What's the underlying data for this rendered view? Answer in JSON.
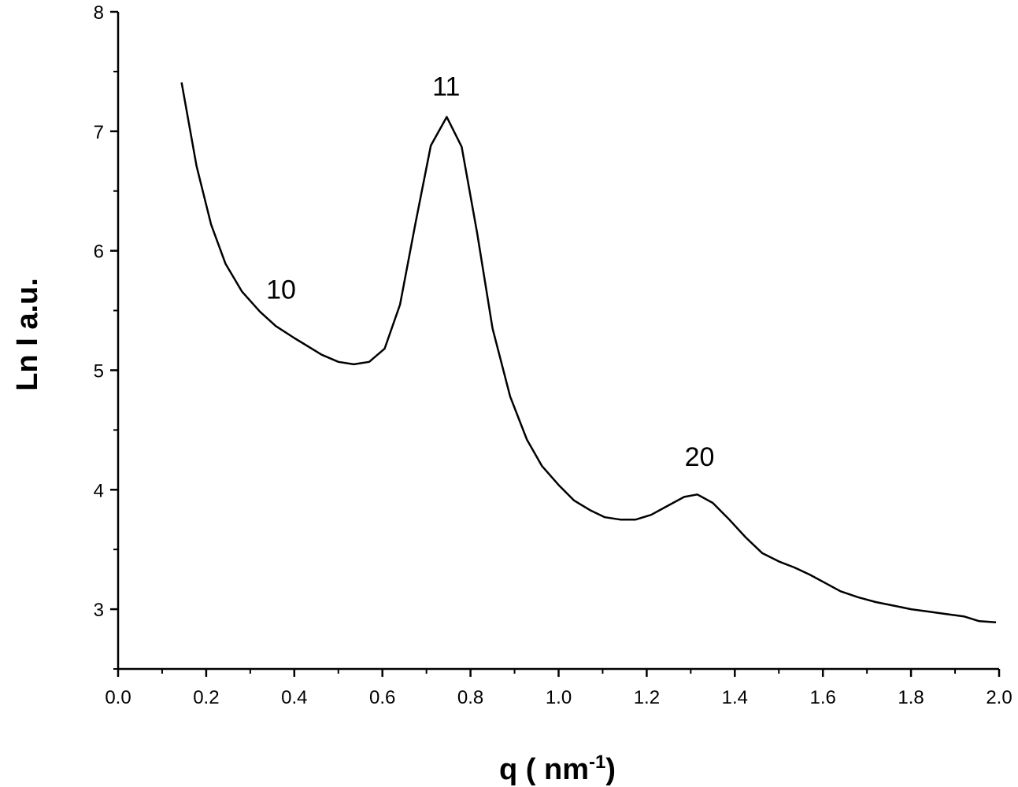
{
  "chart_data": {
    "type": "line",
    "title": "",
    "xlabel": "q ( nm⁻¹)",
    "ylabel": "Ln I a.u.",
    "xlim": [
      0.0,
      2.0
    ],
    "ylim": [
      2.5,
      8.0
    ],
    "x_ticks": [
      "0.0",
      "0.2",
      "0.4",
      "0.6",
      "0.8",
      "1.0",
      "1.2",
      "1.4",
      "1.6",
      "1.8",
      "2.0"
    ],
    "y_ticks": [
      "3",
      "4",
      "5",
      "6",
      "7",
      "8"
    ],
    "grid": false,
    "series": [
      {
        "x": [
          0.144,
          0.178,
          0.211,
          0.244,
          0.281,
          0.322,
          0.358,
          0.4,
          0.462,
          0.5,
          0.535,
          0.57,
          0.605,
          0.64,
          0.675,
          0.71,
          0.746,
          0.78,
          0.815,
          0.85,
          0.89,
          0.928,
          0.962,
          1.0,
          1.035,
          1.071,
          1.105,
          1.14,
          1.175,
          1.21,
          1.245,
          1.285,
          1.315,
          1.35,
          1.385,
          1.425,
          1.462,
          1.5,
          1.535,
          1.57,
          1.605,
          1.64,
          1.68,
          1.72,
          1.76,
          1.8,
          1.84,
          1.88,
          1.92,
          1.955,
          1.993
        ],
        "values": [
          7.41,
          6.71,
          6.22,
          5.89,
          5.66,
          5.49,
          5.37,
          5.27,
          5.13,
          5.07,
          5.05,
          5.07,
          5.18,
          5.55,
          6.23,
          6.88,
          7.12,
          6.87,
          6.15,
          5.35,
          4.78,
          4.42,
          4.2,
          4.04,
          3.91,
          3.83,
          3.77,
          3.75,
          3.75,
          3.79,
          3.86,
          3.94,
          3.96,
          3.89,
          3.76,
          3.6,
          3.47,
          3.4,
          3.35,
          3.29,
          3.22,
          3.15,
          3.1,
          3.06,
          3.03,
          3.0,
          2.98,
          2.96,
          2.94,
          2.9,
          2.89
        ]
      }
    ],
    "annotations": [
      {
        "text": "10",
        "x": 0.37,
        "y": 5.6
      },
      {
        "text": "11",
        "x": 0.745,
        "y": 7.3
      },
      {
        "text": "20",
        "x": 1.32,
        "y": 4.2
      }
    ]
  }
}
